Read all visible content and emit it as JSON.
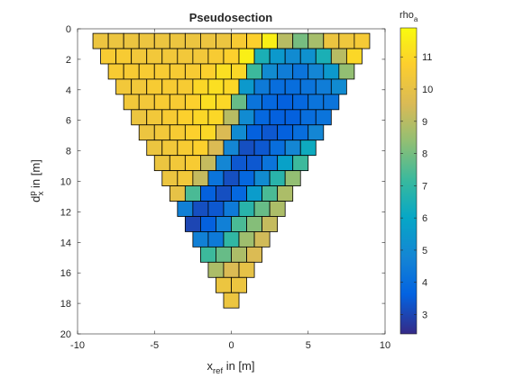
{
  "chart_data": {
    "type": "heatmap",
    "title": "Pseudosection",
    "xlabel": {
      "main": "x",
      "sub": "ref",
      "rest": " in [m]"
    },
    "ylabel": {
      "main": "d",
      "sub": "x",
      "sup": "p",
      "rest": " in [m]"
    },
    "xlim": [
      -10,
      10
    ],
    "ylim": [
      0,
      20
    ],
    "y_reversed": true,
    "xticks": [
      "-10",
      "-5",
      "0",
      "5",
      "10"
    ],
    "yticks": [
      "0",
      "2",
      "4",
      "6",
      "8",
      "10",
      "12",
      "14",
      "16",
      "18",
      "20"
    ],
    "colorbar": {
      "label": {
        "main": "rho",
        "sub": "a"
      },
      "range": [
        2.4,
        11.9
      ],
      "ticks": [
        "3",
        "4",
        "5",
        "6",
        "7",
        "8",
        "9",
        "10",
        "11"
      ],
      "colormap": "parula"
    },
    "grid": false,
    "cell_width_m": 1,
    "row_spacing_m": 1,
    "rows": [
      {
        "depth": 0.8,
        "x_start": -8.5,
        "values": [
          10.2,
          10.2,
          10.2,
          10.2,
          10.2,
          10.2,
          10.2,
          10.2,
          10.2,
          10.6,
          10.8,
          11.6,
          9.0,
          8.0,
          8.7,
          10.2,
          10.3,
          10.5
        ]
      },
      {
        "depth": 1.8,
        "x_start": -8.0,
        "values": [
          10.6,
          10.6,
          10.4,
          10.4,
          10.4,
          10.4,
          10.4,
          10.6,
          10.8,
          11.6,
          6.5,
          5.5,
          5.0,
          5.2,
          6.5,
          9.0,
          11.0
        ]
      },
      {
        "depth": 2.8,
        "x_start": -7.5,
        "values": [
          10.6,
          10.6,
          10.6,
          10.6,
          10.6,
          10.6,
          10.8,
          11.2,
          11.0,
          7.2,
          5.0,
          4.5,
          4.2,
          4.8,
          5.5,
          8.4
        ]
      },
      {
        "depth": 3.8,
        "x_start": -7.0,
        "values": [
          10.4,
          10.4,
          10.6,
          10.6,
          10.6,
          11.0,
          11.2,
          11.0,
          5.5,
          4.4,
          4.0,
          4.0,
          4.2,
          4.5,
          5.0
        ]
      },
      {
        "depth": 4.8,
        "x_start": -6.5,
        "values": [
          10.4,
          10.4,
          10.6,
          10.6,
          10.8,
          11.2,
          11.0,
          7.8,
          4.2,
          3.8,
          3.6,
          3.8,
          4.2,
          4.2
        ]
      },
      {
        "depth": 5.8,
        "x_start": -6.0,
        "values": [
          10.2,
          10.4,
          10.6,
          10.8,
          11.0,
          11.0,
          9.0,
          5.0,
          3.8,
          3.6,
          3.6,
          4.0,
          4.2
        ]
      },
      {
        "depth": 6.8,
        "x_start": -5.5,
        "values": [
          10.2,
          10.4,
          10.6,
          10.8,
          11.0,
          9.6,
          5.0,
          3.6,
          3.4,
          3.6,
          4.0,
          4.8
        ]
      },
      {
        "depth": 7.8,
        "x_start": -5.0,
        "values": [
          10.2,
          10.4,
          10.6,
          10.8,
          9.6,
          4.8,
          3.2,
          3.4,
          4.0,
          4.8,
          6.2
        ]
      },
      {
        "depth": 8.8,
        "x_start": -4.5,
        "values": [
          10.2,
          10.4,
          10.6,
          9.2,
          4.8,
          3.4,
          3.4,
          4.2,
          5.8,
          7.2
        ]
      },
      {
        "depth": 9.8,
        "x_start": -4.0,
        "values": [
          10.2,
          10.4,
          9.2,
          4.2,
          3.2,
          3.8,
          5.0,
          6.8,
          8.4
        ]
      },
      {
        "depth": 10.8,
        "x_start": -3.5,
        "values": [
          10.0,
          7.4,
          3.6,
          3.2,
          3.8,
          5.6,
          7.4,
          8.8
        ]
      },
      {
        "depth": 11.8,
        "x_start": -3.0,
        "values": [
          4.6,
          3.2,
          3.4,
          4.4,
          6.8,
          7.8,
          8.8
        ]
      },
      {
        "depth": 12.8,
        "x_start": -2.5,
        "values": [
          3.0,
          3.6,
          4.6,
          7.4,
          8.2,
          9.2
        ]
      },
      {
        "depth": 13.8,
        "x_start": -2.0,
        "values": [
          4.6,
          4.4,
          7.0,
          8.6,
          9.4
        ]
      },
      {
        "depth": 14.8,
        "x_start": -1.5,
        "values": [
          7.2,
          7.8,
          8.8,
          9.6
        ]
      },
      {
        "depth": 15.8,
        "x_start": -1.0,
        "values": [
          8.8,
          9.6,
          10.0
        ]
      },
      {
        "depth": 16.8,
        "x_start": -0.5,
        "values": [
          10.2,
          10.2
        ]
      },
      {
        "depth": 17.8,
        "x_start": 0.0,
        "values": [
          10.2
        ]
      }
    ]
  }
}
